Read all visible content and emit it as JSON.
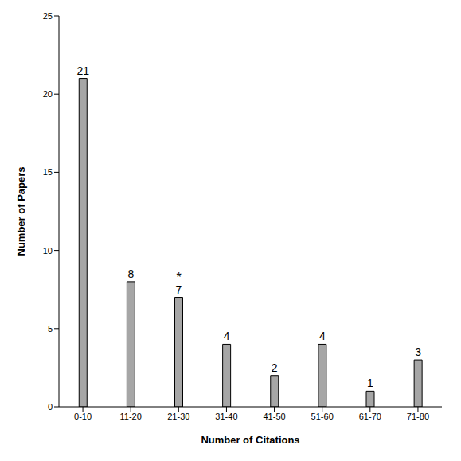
{
  "chart_data": {
    "type": "bar",
    "categories": [
      "0-10",
      "11-20",
      "21-30",
      "31-40",
      "41-50",
      "51-60",
      "61-70",
      "71-80"
    ],
    "values": [
      21,
      8,
      7,
      4,
      2,
      4,
      1,
      3
    ],
    "color": "#a6a6a6",
    "xlabel": "Number of Citations",
    "ylabel": "Number of Papers",
    "ylim": [
      0,
      25
    ],
    "yticks": [
      0,
      5,
      10,
      15,
      20,
      25
    ],
    "grid": false,
    "data_labels": true,
    "annotations": [
      {
        "text": "*",
        "category": "21-30"
      }
    ]
  }
}
